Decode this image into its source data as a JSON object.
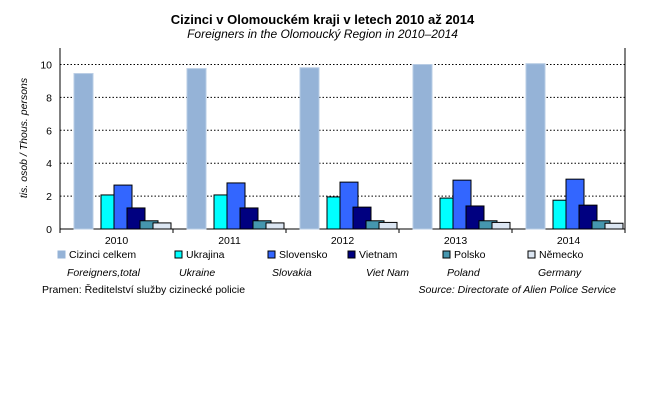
{
  "chart_data": {
    "type": "bar",
    "title": "Cizinci v Olomouckém kraji v letech 2010 až 2014",
    "subtitle": "Foreigners in the Olomoucký Region in 2010–2014",
    "ylabel": "tis. osob / Thous. persons",
    "xlabel": "",
    "ylim": [
      0,
      10.8
    ],
    "yticks": [
      "0",
      "2",
      "4",
      "6",
      "8",
      "10"
    ],
    "grid": true,
    "legend_position": "bottom",
    "categories": [
      "2010",
      "2011",
      "2012",
      "2013",
      "2014"
    ],
    "series": [
      {
        "name": "Cizinci celkem",
        "name_en": "Foreigners,total",
        "color": "#95B3D7",
        "values": [
          9.45,
          9.75,
          9.8,
          10.0,
          10.05
        ]
      },
      {
        "name": "Ukrajina",
        "name_en": "Ukraine",
        "color": "#00FFFF",
        "values": [
          2.07,
          2.07,
          1.95,
          1.88,
          1.75
        ]
      },
      {
        "name": "Slovensko",
        "name_en": "Slovakia",
        "color": "#3366FF",
        "values": [
          2.67,
          2.8,
          2.85,
          2.97,
          3.03
        ]
      },
      {
        "name": "Vietnam",
        "name_en": "Viet Nam",
        "color": "#000080",
        "values": [
          1.28,
          1.28,
          1.33,
          1.4,
          1.45
        ]
      },
      {
        "name": "Polsko",
        "name_en": "Poland",
        "color": "#4596AE",
        "values": [
          0.5,
          0.5,
          0.5,
          0.5,
          0.5
        ]
      },
      {
        "name": "Německo",
        "name_en": "Germany",
        "color": "#DCE6F2",
        "values": [
          0.37,
          0.37,
          0.4,
          0.4,
          0.35
        ]
      }
    ]
  },
  "source_cz": "Pramen: Ředitelství služby cizinecké policie",
  "source_en": "Source: Directorate of Alien Police Service"
}
